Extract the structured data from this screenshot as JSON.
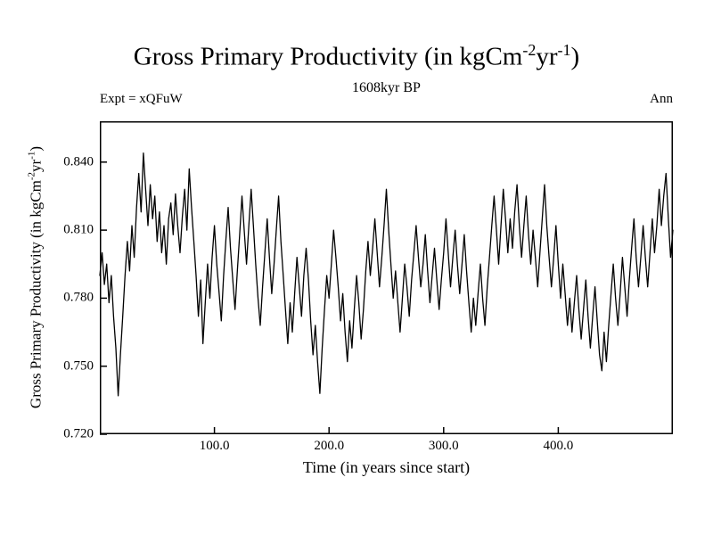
{
  "header": {
    "title": {
      "prefix": "Gross Primary Productivity (in kgCm",
      "sup1": "-2",
      "mid": "yr",
      "sup2": "-1",
      "suffix": ")"
    },
    "subtitle": "1608kyr BP",
    "experiment_label": "Expt = xQFuW",
    "period_label": "Ann"
  },
  "axes": {
    "xlabel": "Time (in years since start)"
  },
  "colors": {
    "line": "#000000",
    "frame": "#000000",
    "background": "#ffffff"
  },
  "chart_data": {
    "type": "line",
    "title": "Gross Primary Productivity (in kgCm-2yr-1)",
    "subtitle": "1608kyr BP",
    "experiment": "Expt = xQFuW",
    "period": "Ann",
    "xlabel": "Time (in years since start)",
    "ylabel": "Gross Primary Productivity (in kgCm-2yr-1)",
    "xlim": [
      0,
      500
    ],
    "ylim": [
      0.72,
      0.858
    ],
    "grid": false,
    "legend": "none",
    "x_ticks": [
      {
        "value": 100,
        "label": "100.0"
      },
      {
        "value": 200,
        "label": "200.0"
      },
      {
        "value": 300,
        "label": "300.0"
      },
      {
        "value": 400,
        "label": "400.0"
      }
    ],
    "y_ticks": [
      {
        "value": 0.72,
        "label": "0.720"
      },
      {
        "value": 0.75,
        "label": "0.750"
      },
      {
        "value": 0.78,
        "label": "0.780"
      },
      {
        "value": 0.81,
        "label": "0.810"
      },
      {
        "value": 0.84,
        "label": "0.840"
      }
    ],
    "x_start": 0,
    "x_step": 2,
    "values": [
      0.79,
      0.8,
      0.786,
      0.795,
      0.778,
      0.79,
      0.772,
      0.758,
      0.737,
      0.755,
      0.772,
      0.79,
      0.805,
      0.792,
      0.812,
      0.798,
      0.82,
      0.835,
      0.818,
      0.844,
      0.828,
      0.812,
      0.83,
      0.815,
      0.825,
      0.805,
      0.818,
      0.8,
      0.812,
      0.795,
      0.815,
      0.822,
      0.808,
      0.826,
      0.812,
      0.8,
      0.816,
      0.828,
      0.81,
      0.837,
      0.82,
      0.805,
      0.79,
      0.772,
      0.788,
      0.76,
      0.778,
      0.795,
      0.78,
      0.798,
      0.812,
      0.795,
      0.783,
      0.77,
      0.79,
      0.806,
      0.82,
      0.802,
      0.788,
      0.775,
      0.792,
      0.808,
      0.825,
      0.81,
      0.795,
      0.812,
      0.828,
      0.812,
      0.795,
      0.78,
      0.768,
      0.785,
      0.8,
      0.815,
      0.798,
      0.782,
      0.795,
      0.81,
      0.825,
      0.805,
      0.79,
      0.775,
      0.76,
      0.778,
      0.765,
      0.782,
      0.798,
      0.785,
      0.772,
      0.79,
      0.802,
      0.788,
      0.77,
      0.755,
      0.768,
      0.752,
      0.738,
      0.758,
      0.775,
      0.79,
      0.78,
      0.795,
      0.81,
      0.798,
      0.785,
      0.77,
      0.782,
      0.765,
      0.752,
      0.77,
      0.758,
      0.775,
      0.79,
      0.778,
      0.762,
      0.775,
      0.792,
      0.805,
      0.79,
      0.802,
      0.815,
      0.8,
      0.785,
      0.798,
      0.812,
      0.828,
      0.81,
      0.795,
      0.78,
      0.792,
      0.778,
      0.765,
      0.78,
      0.795,
      0.785,
      0.772,
      0.788,
      0.8,
      0.812,
      0.798,
      0.785,
      0.795,
      0.808,
      0.792,
      0.778,
      0.79,
      0.802,
      0.788,
      0.775,
      0.788,
      0.8,
      0.815,
      0.8,
      0.785,
      0.798,
      0.81,
      0.795,
      0.782,
      0.795,
      0.808,
      0.792,
      0.778,
      0.765,
      0.78,
      0.768,
      0.782,
      0.795,
      0.78,
      0.768,
      0.785,
      0.798,
      0.812,
      0.825,
      0.81,
      0.795,
      0.812,
      0.828,
      0.815,
      0.8,
      0.815,
      0.802,
      0.818,
      0.83,
      0.812,
      0.798,
      0.812,
      0.825,
      0.808,
      0.795,
      0.81,
      0.798,
      0.785,
      0.8,
      0.815,
      0.83,
      0.812,
      0.798,
      0.785,
      0.798,
      0.812,
      0.795,
      0.78,
      0.795,
      0.782,
      0.768,
      0.78,
      0.765,
      0.778,
      0.79,
      0.775,
      0.762,
      0.775,
      0.788,
      0.772,
      0.758,
      0.772,
      0.785,
      0.77,
      0.755,
      0.748,
      0.765,
      0.752,
      0.768,
      0.782,
      0.795,
      0.78,
      0.768,
      0.782,
      0.798,
      0.785,
      0.772,
      0.788,
      0.802,
      0.815,
      0.798,
      0.785,
      0.798,
      0.812,
      0.798,
      0.785,
      0.8,
      0.815,
      0.8,
      0.812,
      0.828,
      0.812,
      0.825,
      0.835,
      0.815,
      0.798,
      0.81
    ]
  }
}
